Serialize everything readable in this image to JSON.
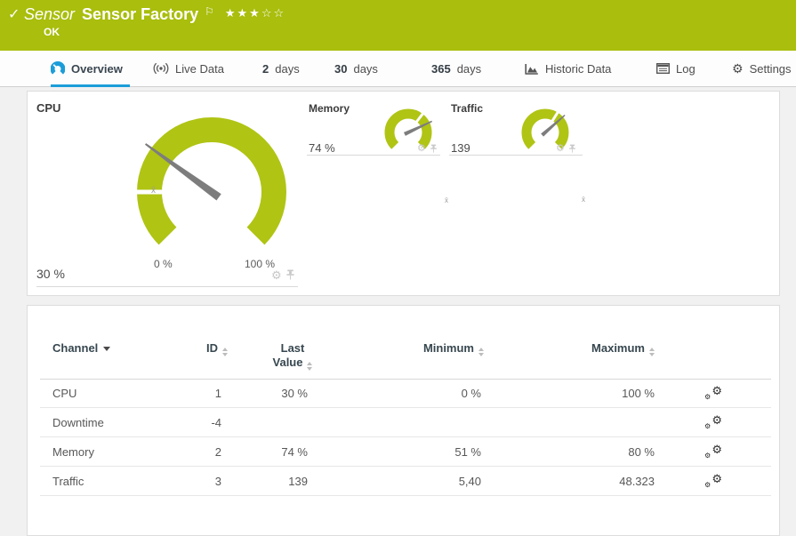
{
  "header": {
    "status_icon": "check",
    "kind": "Sensor",
    "title": "Sensor Factory",
    "status": "OK",
    "rating": {
      "filled": 3,
      "total": 5,
      "stars_filled_glyphs": "★★★",
      "stars_empty_glyphs": "☆☆"
    }
  },
  "tabs": [
    {
      "label": "Overview",
      "icon": "gauge-icon",
      "active": true
    },
    {
      "label": "Live Data",
      "icon": "broadcast-icon",
      "active": false
    },
    {
      "number": "2",
      "label": "days",
      "active": false
    },
    {
      "number": "30",
      "label": "days",
      "active": false
    },
    {
      "number": "365",
      "label": "days",
      "active": false
    },
    {
      "label": "Historic Data",
      "icon": "chart-icon",
      "active": false
    },
    {
      "label": "Log",
      "icon": "log-icon",
      "active": false
    },
    {
      "label": "Settings",
      "icon": "gear-icon",
      "active": false
    }
  ],
  "gauges": {
    "cpu": {
      "label": "CPU",
      "value": "30 %",
      "percent": 30,
      "scale_min": "0 %",
      "scale_max": "100 %",
      "avg_marker": "x̄"
    },
    "memory": {
      "label": "Memory",
      "value": "74 %",
      "percent": 74,
      "avg_marker": "x̄"
    },
    "traffic": {
      "label": "Traffic",
      "value": "139",
      "percent": 68,
      "avg_marker": "x̄"
    }
  },
  "table": {
    "sort_column": "Channel",
    "headers": {
      "channel": "Channel",
      "id": "ID",
      "last_value_line1": "Last",
      "last_value_line2": "Value",
      "minimum": "Minimum",
      "maximum": "Maximum"
    },
    "rows": [
      {
        "channel": "CPU",
        "id": "1",
        "last": "30 %",
        "min": "0 %",
        "max": "100 %"
      },
      {
        "channel": "Downtime",
        "id": "-4",
        "last": "",
        "min": "",
        "max": ""
      },
      {
        "channel": "Memory",
        "id": "2",
        "last": "74 %",
        "min": "51 %",
        "max": "80 %"
      },
      {
        "channel": "Traffic",
        "id": "3",
        "last": "139",
        "min": "5,40",
        "max": "48.323"
      }
    ]
  },
  "colors": {
    "brand_green": "#a9be0d",
    "gauge_green": "#b0c414",
    "tab_active_blue": "#1b9dd9",
    "needle_gray": "#7d7d7d"
  }
}
